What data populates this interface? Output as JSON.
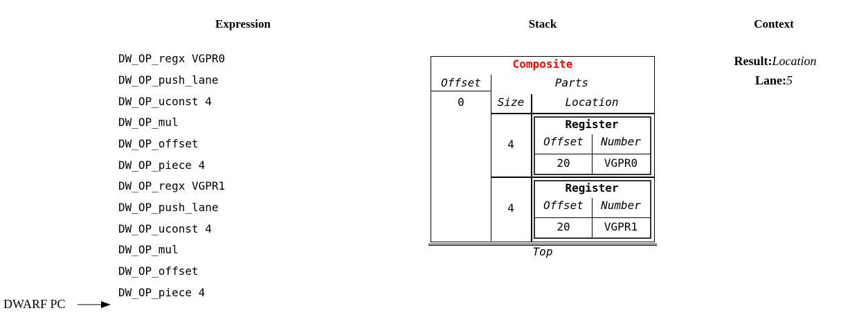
{
  "headers": {
    "expression": "Expression",
    "stack": "Stack",
    "context": "Context"
  },
  "expression": [
    "DW_OP_regx VGPR0",
    "DW_OP_push_lane",
    "DW_OP_uconst 4",
    "DW_OP_mul",
    "DW_OP_offset",
    "DW_OP_piece 4",
    "DW_OP_regx VGPR1",
    "DW_OP_push_lane",
    "DW_OP_uconst 4",
    "DW_OP_mul",
    "DW_OP_offset",
    "DW_OP_piece 4"
  ],
  "pc_label": "DWARF PC",
  "stack": {
    "title": "Composite",
    "title_color": "#ff0000",
    "offset_header": "Offset",
    "offset_value": "0",
    "parts_header": "Parts",
    "size_header": "Size",
    "location_header": "Location",
    "parts": [
      {
        "size": "4",
        "location": {
          "title": "Register",
          "offset_header": "Offset",
          "number_header": "Number",
          "offset": "20",
          "number": "VGPR0"
        }
      },
      {
        "size": "4",
        "location": {
          "title": "Register",
          "offset_header": "Offset",
          "number_header": "Number",
          "offset": "20",
          "number": "VGPR1"
        }
      }
    ],
    "top_label": "Top"
  },
  "context": {
    "result_label": "Result:",
    "result_value": "Location",
    "lane_label": "Lane:",
    "lane_value": "5"
  }
}
